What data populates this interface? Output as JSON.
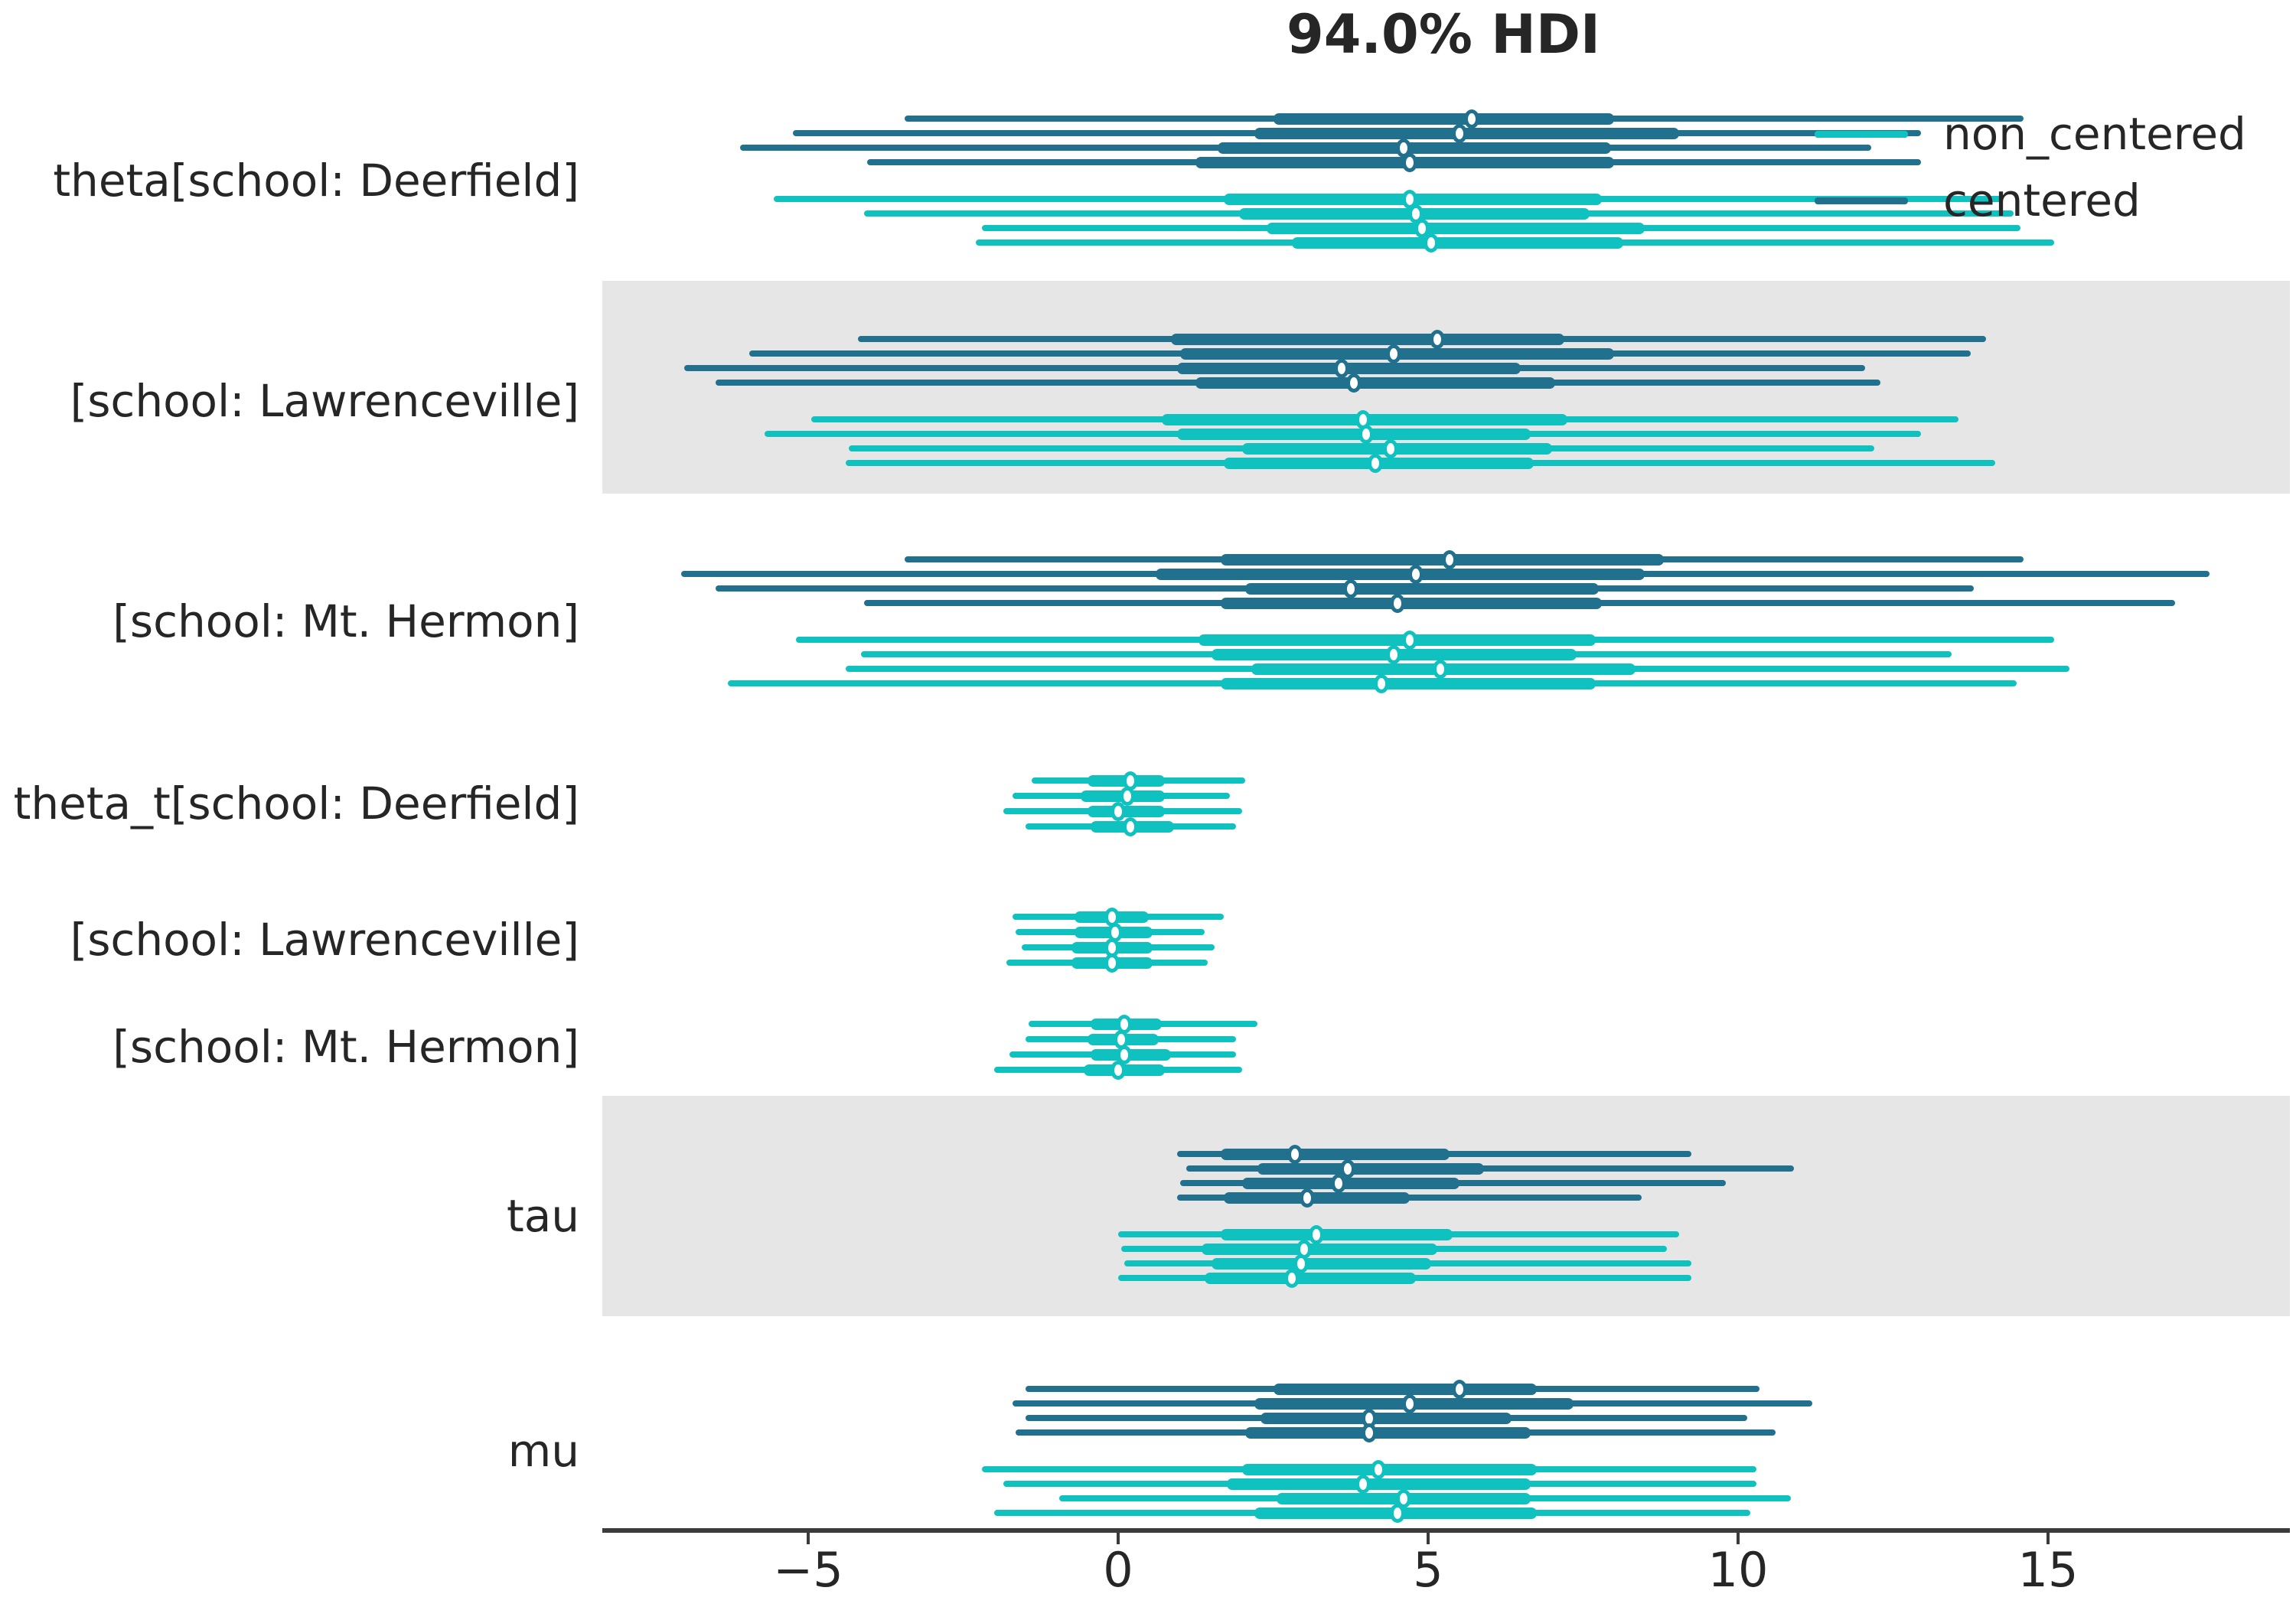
{
  "title": "94.0% HDI",
  "legend": {
    "entries": [
      {
        "label": "non_centered",
        "color": "#0fc2c0"
      },
      {
        "label": "centered",
        "color": "#20708e"
      }
    ]
  },
  "colors": {
    "non_centered": "#0fc2c0",
    "centered": "#20708e",
    "shaded_band": "#e6e6e6",
    "axis": "#3b3b3b",
    "text": "#262626",
    "marker_fill": "#ffffff"
  },
  "chart_data": {
    "type": "forest",
    "title": "94.0% HDI",
    "xlim": [
      -8.4,
      18.9
    ],
    "x_ticks": [
      -5,
      0,
      5,
      10,
      15
    ],
    "x_tick_labels": [
      "−5",
      "0",
      "5",
      "10",
      "15"
    ],
    "grid": false,
    "legend_position": "upper right",
    "models": [
      "non_centered",
      "centered"
    ],
    "groups": [
      {
        "label": "theta[school: Deerfield]",
        "shaded": false,
        "series": [
          {
            "model": "centered",
            "rows": [
              {
                "hdi_94": [
                  -3.45,
                  14.6
                ],
                "quartile": [
                  2.5,
                  8.0
                ],
                "median": 5.7
              },
              {
                "hdi_94": [
                  -5.25,
                  12.95
                ],
                "quartile": [
                  2.2,
                  9.05
                ],
                "median": 5.5
              },
              {
                "hdi_94": [
                  -6.1,
                  12.15
                ],
                "quartile": [
                  1.6,
                  7.95
                ],
                "median": 4.6
              },
              {
                "hdi_94": [
                  -4.05,
                  12.95
                ],
                "quartile": [
                  1.25,
                  8.0
                ],
                "median": 4.7
              }
            ]
          },
          {
            "model": "non_centered",
            "rows": [
              {
                "hdi_94": [
                  -5.55,
                  14.25
                ],
                "quartile": [
                  1.7,
                  7.8
                ],
                "median": 4.7
              },
              {
                "hdi_94": [
                  -4.1,
                  14.45
                ],
                "quartile": [
                  1.95,
                  7.6
                ],
                "median": 4.8
              },
              {
                "hdi_94": [
                  -2.2,
                  14.55
                ],
                "quartile": [
                  2.4,
                  8.5
                ],
                "median": 4.9
              },
              {
                "hdi_94": [
                  -2.3,
                  15.1
                ],
                "quartile": [
                  2.8,
                  8.15
                ],
                "median": 5.05
              }
            ]
          }
        ]
      },
      {
        "label": "[school: Lawrenceville]",
        "shaded": true,
        "series": [
          {
            "model": "centered",
            "rows": [
              {
                "hdi_94": [
                  -4.2,
                  14.0
                ],
                "quartile": [
                  0.85,
                  7.2
                ],
                "median": 5.15
              },
              {
                "hdi_94": [
                  -5.95,
                  13.75
                ],
                "quartile": [
                  1.0,
                  8.0
                ],
                "median": 4.45
              },
              {
                "hdi_94": [
                  -7.0,
                  12.05
                ],
                "quartile": [
                  0.95,
                  6.5
                ],
                "median": 3.6
              },
              {
                "hdi_94": [
                  -6.5,
                  12.3
                ],
                "quartile": [
                  1.25,
                  7.05
                ],
                "median": 3.8
              }
            ]
          },
          {
            "model": "non_centered",
            "rows": [
              {
                "hdi_94": [
                  -4.95,
                  13.55
                ],
                "quartile": [
                  0.7,
                  7.25
                ],
                "median": 3.95
              },
              {
                "hdi_94": [
                  -5.7,
                  12.95
                ],
                "quartile": [
                  0.95,
                  6.65
                ],
                "median": 4.0
              },
              {
                "hdi_94": [
                  -4.35,
                  12.2
                ],
                "quartile": [
                  2.0,
                  7.0
                ],
                "median": 4.4
              },
              {
                "hdi_94": [
                  -4.4,
                  14.15
                ],
                "quartile": [
                  1.7,
                  6.7
                ],
                "median": 4.15
              }
            ]
          }
        ]
      },
      {
        "label": "[school: Mt. Hermon]",
        "shaded": false,
        "series": [
          {
            "model": "centered",
            "rows": [
              {
                "hdi_94": [
                  -3.45,
                  14.6
                ],
                "quartile": [
                  1.65,
                  8.8
                ],
                "median": 5.35
              },
              {
                "hdi_94": [
                  -7.05,
                  17.6
                ],
                "quartile": [
                  0.6,
                  8.5
                ],
                "median": 4.8
              },
              {
                "hdi_94": [
                  -6.5,
                  13.8
                ],
                "quartile": [
                  2.05,
                  7.75
                ],
                "median": 3.75
              },
              {
                "hdi_94": [
                  -4.1,
                  17.05
                ],
                "quartile": [
                  1.65,
                  7.8
                ],
                "median": 4.5
              }
            ]
          },
          {
            "model": "non_centered",
            "rows": [
              {
                "hdi_94": [
                  -5.2,
                  15.1
                ],
                "quartile": [
                  1.3,
                  7.7
                ],
                "median": 4.7
              },
              {
                "hdi_94": [
                  -4.15,
                  13.45
                ],
                "quartile": [
                  1.5,
                  7.4
                ],
                "median": 4.45
              },
              {
                "hdi_94": [
                  -4.4,
                  15.35
                ],
                "quartile": [
                  2.15,
                  8.35
                ],
                "median": 5.2
              },
              {
                "hdi_94": [
                  -6.3,
                  14.5
                ],
                "quartile": [
                  1.65,
                  7.7
                ],
                "median": 4.25
              }
            ]
          }
        ]
      },
      {
        "label": "theta_t[school: Deerfield]",
        "shaded": false,
        "series": [
          {
            "model": "non_centered",
            "rows": [
              {
                "hdi_94": [
                  -1.4,
                  2.05
                ],
                "quartile": [
                  -0.5,
                  0.75
                ],
                "median": 0.2
              },
              {
                "hdi_94": [
                  -1.7,
                  1.8
                ],
                "quartile": [
                  -0.6,
                  0.75
                ],
                "median": 0.15
              },
              {
                "hdi_94": [
                  -1.85,
                  2.0
                ],
                "quartile": [
                  -0.5,
                  0.75
                ],
                "median": 0.0
              },
              {
                "hdi_94": [
                  -1.5,
                  1.9
                ],
                "quartile": [
                  -0.45,
                  0.9
                ],
                "median": 0.2
              }
            ]
          }
        ]
      },
      {
        "label": "[school: Lawrenceville]",
        "shaded": false,
        "series": [
          {
            "model": "non_centered",
            "rows": [
              {
                "hdi_94": [
                  -1.7,
                  1.7
                ],
                "quartile": [
                  -0.7,
                  0.5
                ],
                "median": -0.1
              },
              {
                "hdi_94": [
                  -1.65,
                  1.4
                ],
                "quartile": [
                  -0.7,
                  0.55
                ],
                "median": -0.05
              },
              {
                "hdi_94": [
                  -1.55,
                  1.55
                ],
                "quartile": [
                  -0.75,
                  0.55
                ],
                "median": -0.1
              },
              {
                "hdi_94": [
                  -1.8,
                  1.45
                ],
                "quartile": [
                  -0.75,
                  0.55
                ],
                "median": -0.1
              }
            ]
          }
        ]
      },
      {
        "label": "[school: Mt. Hermon]",
        "shaded": false,
        "series": [
          {
            "model": "non_centered",
            "rows": [
              {
                "hdi_94": [
                  -1.45,
                  2.25
                ],
                "quartile": [
                  -0.45,
                  0.7
                ],
                "median": 0.1
              },
              {
                "hdi_94": [
                  -1.5,
                  1.9
                ],
                "quartile": [
                  -0.5,
                  0.65
                ],
                "median": 0.05
              },
              {
                "hdi_94": [
                  -1.75,
                  1.9
                ],
                "quartile": [
                  -0.45,
                  0.85
                ],
                "median": 0.1
              },
              {
                "hdi_94": [
                  -2.0,
                  2.0
                ],
                "quartile": [
                  -0.55,
                  0.75
                ],
                "median": 0.0
              }
            ]
          }
        ]
      },
      {
        "label": "tau",
        "shaded": true,
        "series": [
          {
            "model": "centered",
            "rows": [
              {
                "hdi_94": [
                  0.95,
                  9.25
                ],
                "quartile": [
                  1.65,
                  5.35
                ],
                "median": 2.85
              },
              {
                "hdi_94": [
                  1.1,
                  10.9
                ],
                "quartile": [
                  2.25,
                  5.9
                ],
                "median": 3.7
              },
              {
                "hdi_94": [
                  1.0,
                  9.8
                ],
                "quartile": [
                  2.0,
                  5.5
                ],
                "median": 3.55
              },
              {
                "hdi_94": [
                  0.95,
                  8.45
                ],
                "quartile": [
                  1.7,
                  4.7
                ],
                "median": 3.05
              }
            ]
          },
          {
            "model": "non_centered",
            "rows": [
              {
                "hdi_94": [
                  0.0,
                  9.05
                ],
                "quartile": [
                  1.65,
                  5.4
                ],
                "median": 3.2
              },
              {
                "hdi_94": [
                  0.05,
                  8.85
                ],
                "quartile": [
                  1.35,
                  5.15
                ],
                "median": 3.0
              },
              {
                "hdi_94": [
                  0.1,
                  9.25
                ],
                "quartile": [
                  1.5,
                  5.05
                ],
                "median": 2.95
              },
              {
                "hdi_94": [
                  0.0,
                  9.25
                ],
                "quartile": [
                  1.4,
                  4.8
                ],
                "median": 2.8
              }
            ]
          }
        ]
      },
      {
        "label": "mu",
        "shaded": false,
        "series": [
          {
            "model": "centered",
            "rows": [
              {
                "hdi_94": [
                  -1.5,
                  10.35
                ],
                "quartile": [
                  2.5,
                  6.75
                ],
                "median": 5.5
              },
              {
                "hdi_94": [
                  -1.7,
                  11.2
                ],
                "quartile": [
                  2.2,
                  7.35
                ],
                "median": 4.7
              },
              {
                "hdi_94": [
                  -1.5,
                  10.15
                ],
                "quartile": [
                  2.3,
                  6.35
                ],
                "median": 4.05
              },
              {
                "hdi_94": [
                  -1.65,
                  10.6
                ],
                "quartile": [
                  2.05,
                  6.65
                ],
                "median": 4.05
              }
            ]
          },
          {
            "model": "non_centered",
            "rows": [
              {
                "hdi_94": [
                  -2.2,
                  10.3
                ],
                "quartile": [
                  2.0,
                  6.75
                ],
                "median": 4.2
              },
              {
                "hdi_94": [
                  -1.85,
                  10.3
                ],
                "quartile": [
                  1.75,
                  6.65
                ],
                "median": 3.95
              },
              {
                "hdi_94": [
                  -0.95,
                  10.85
                ],
                "quartile": [
                  2.55,
                  6.65
                ],
                "median": 4.6
              },
              {
                "hdi_94": [
                  -2.0,
                  10.2
                ],
                "quartile": [
                  2.2,
                  6.75
                ],
                "median": 4.5
              }
            ]
          }
        ]
      }
    ]
  }
}
